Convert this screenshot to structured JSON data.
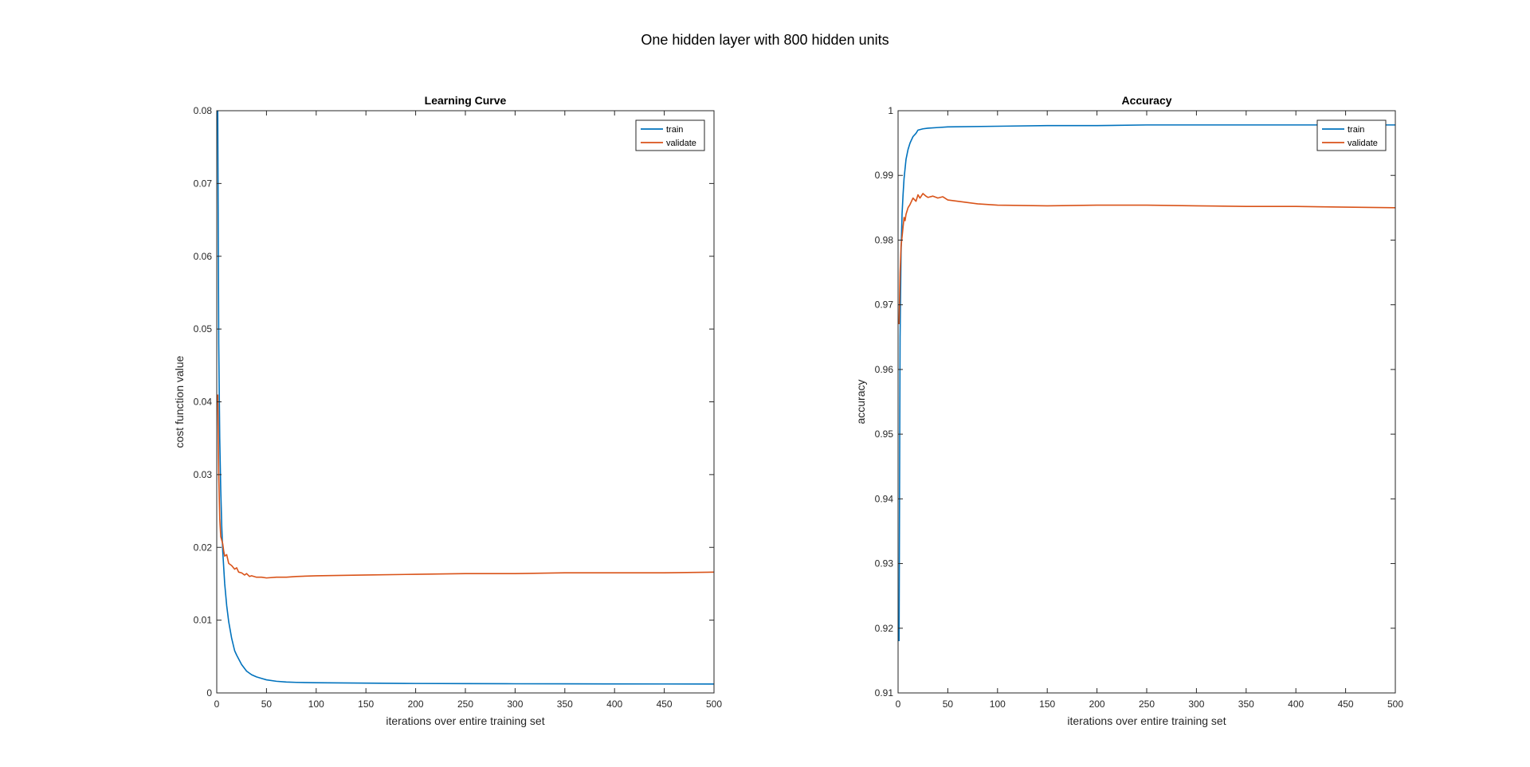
{
  "figure": {
    "suptitle": "One hidden layer with 800 hidden units"
  },
  "chart_data": [
    {
      "type": "line",
      "title": "Learning Curve",
      "xlabel": "iterations over entire training set",
      "ylabel": "cost function value",
      "xlim": [
        0,
        500
      ],
      "ylim": [
        0,
        0.08
      ],
      "xticks": [
        0,
        50,
        100,
        150,
        200,
        250,
        300,
        350,
        400,
        450,
        500
      ],
      "yticks": [
        0,
        0.01,
        0.02,
        0.03,
        0.04,
        0.05,
        0.06,
        0.07,
        0.08
      ],
      "xtick_labels": [
        "0",
        "50",
        "100",
        "150",
        "200",
        "250",
        "300",
        "350",
        "400",
        "450",
        "500"
      ],
      "ytick_labels": [
        "0",
        "0.01",
        "0.02",
        "0.03",
        "0.04",
        "0.05",
        "0.06",
        "0.07",
        "0.08"
      ],
      "grid": false,
      "legend": "top-right",
      "series": [
        {
          "name": "train",
          "color": "#0072BD",
          "x": [
            1,
            2,
            3,
            4,
            5,
            6,
            8,
            10,
            12,
            15,
            18,
            20,
            25,
            30,
            35,
            40,
            45,
            50,
            60,
            70,
            80,
            100,
            150,
            200,
            250,
            300,
            350,
            400,
            450,
            500
          ],
          "y": [
            0.08,
            0.048,
            0.035,
            0.028,
            0.023,
            0.0195,
            0.015,
            0.012,
            0.0098,
            0.0075,
            0.0058,
            0.0052,
            0.0039,
            0.003,
            0.0025,
            0.0022,
            0.002,
            0.0018,
            0.0016,
            0.0015,
            0.00145,
            0.0014,
            0.00135,
            0.0013,
            0.00128,
            0.00126,
            0.00125,
            0.00124,
            0.00123,
            0.00122
          ]
        },
        {
          "name": "validate",
          "color": "#D95319",
          "x": [
            1,
            2,
            3,
            4,
            5,
            6,
            7,
            8,
            10,
            12,
            15,
            18,
            20,
            22,
            25,
            28,
            30,
            33,
            35,
            40,
            45,
            50,
            60,
            70,
            80,
            100,
            150,
            200,
            250,
            300,
            350,
            400,
            450,
            500
          ],
          "y": [
            0.041,
            0.03,
            0.024,
            0.0215,
            0.021,
            0.0205,
            0.0195,
            0.0188,
            0.019,
            0.0178,
            0.0175,
            0.017,
            0.0172,
            0.0166,
            0.0165,
            0.0162,
            0.0164,
            0.016,
            0.0161,
            0.0159,
            0.0159,
            0.0158,
            0.0159,
            0.0159,
            0.016,
            0.0161,
            0.0162,
            0.0163,
            0.0164,
            0.0164,
            0.0165,
            0.0165,
            0.0165,
            0.0166
          ]
        }
      ]
    },
    {
      "type": "line",
      "title": "Accuracy",
      "xlabel": "iterations over entire training set",
      "ylabel": "accuracy",
      "xlim": [
        0,
        500
      ],
      "ylim": [
        0.91,
        1
      ],
      "xticks": [
        0,
        50,
        100,
        150,
        200,
        250,
        300,
        350,
        400,
        450,
        500
      ],
      "yticks": [
        0.91,
        0.92,
        0.93,
        0.94,
        0.95,
        0.96,
        0.97,
        0.98,
        0.99,
        1
      ],
      "xtick_labels": [
        "0",
        "50",
        "100",
        "150",
        "200",
        "250",
        "300",
        "350",
        "400",
        "450",
        "500"
      ],
      "ytick_labels": [
        "0.91",
        "0.92",
        "0.93",
        "0.94",
        "0.95",
        "0.96",
        "0.97",
        "0.98",
        "0.99",
        "1"
      ],
      "grid": false,
      "legend": "top-right",
      "series": [
        {
          "name": "train",
          "color": "#0072BD",
          "x": [
            1,
            2,
            3,
            4,
            5,
            6,
            7,
            8,
            10,
            12,
            15,
            18,
            20,
            25,
            30,
            40,
            50,
            100,
            150,
            200,
            250,
            300,
            350,
            400,
            450,
            500
          ],
          "y": [
            0.918,
            0.965,
            0.978,
            0.984,
            0.987,
            0.9895,
            0.991,
            0.9925,
            0.994,
            0.995,
            0.996,
            0.9965,
            0.997,
            0.9972,
            0.9973,
            0.9974,
            0.9975,
            0.9976,
            0.9977,
            0.9977,
            0.9978,
            0.9978,
            0.9978,
            0.9978,
            0.9978,
            0.9978
          ]
        },
        {
          "name": "validate",
          "color": "#D95319",
          "x": [
            1,
            2,
            3,
            4,
            5,
            6,
            7,
            8,
            10,
            12,
            15,
            18,
            20,
            22,
            25,
            28,
            30,
            35,
            40,
            45,
            50,
            60,
            70,
            80,
            100,
            150,
            200,
            250,
            300,
            350,
            400,
            450,
            500
          ],
          "y": [
            0.967,
            0.975,
            0.979,
            0.9805,
            0.982,
            0.9835,
            0.983,
            0.984,
            0.985,
            0.9855,
            0.9865,
            0.986,
            0.987,
            0.9865,
            0.9872,
            0.9868,
            0.9866,
            0.9868,
            0.9865,
            0.9867,
            0.9862,
            0.986,
            0.9858,
            0.9856,
            0.9854,
            0.9853,
            0.9854,
            0.9854,
            0.9853,
            0.9852,
            0.9852,
            0.9851,
            0.985
          ]
        }
      ]
    }
  ]
}
